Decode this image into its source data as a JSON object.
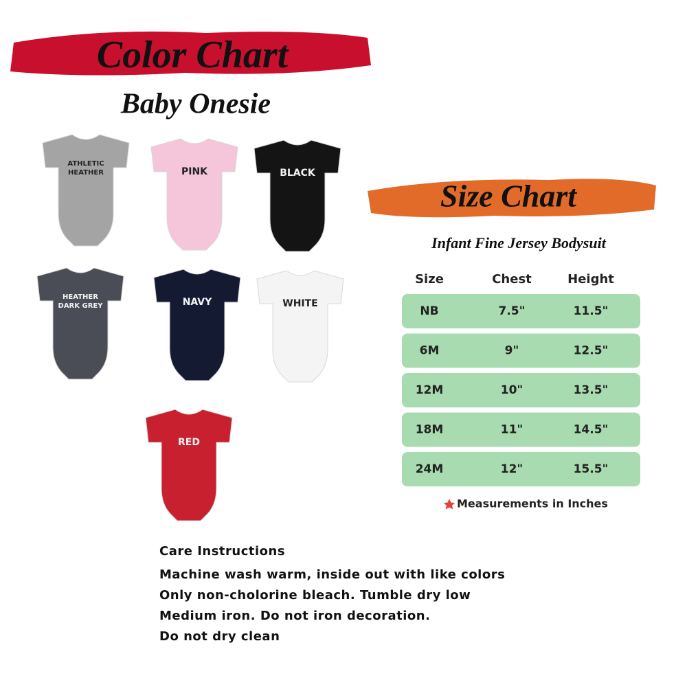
{
  "color_chart": {
    "title": "Color Chart",
    "subtitle": "Baby Onesie",
    "swatches": [
      {
        "label": [
          "ATHLETIC",
          "HEATHER"
        ],
        "color": "#a4a4a4"
      },
      {
        "label": [
          "PINK"
        ],
        "color": "#f5c6d9"
      },
      {
        "label": [
          "BLACK"
        ],
        "color": "#141414"
      },
      {
        "label": [
          "HEATHER",
          "DARK GREY"
        ],
        "color": "#4a4c56"
      },
      {
        "label": [
          "NAVY"
        ],
        "color": "#151a33"
      },
      {
        "label": [
          "WHITE"
        ],
        "color": "#f4f4f4"
      },
      {
        "label": [
          "RED"
        ],
        "color": "#c8202e"
      }
    ]
  },
  "size_chart": {
    "title": "Size Chart",
    "subtitle": "Infant Fine Jersey Bodysuit",
    "header": [
      "Size",
      "Chest",
      "Height"
    ],
    "rows": [
      [
        "NB",
        "7.5\"",
        "11.5\""
      ],
      [
        "6M",
        "9\"",
        "12.5\""
      ],
      [
        "12M",
        "10\"",
        "13.5\""
      ],
      [
        "18M",
        "11\"",
        "14.5\""
      ],
      [
        "24M",
        "12\"",
        "15.5\""
      ]
    ],
    "note": "Measurements in Inches"
  },
  "care": {
    "title": "Care Instructions",
    "lines": [
      "Machine wash warm, inside out with like colors",
      "Only non-cholorine bleach. Tumble dry low",
      "Medium iron. Do not iron decoration.",
      "Do not dry clean"
    ]
  }
}
